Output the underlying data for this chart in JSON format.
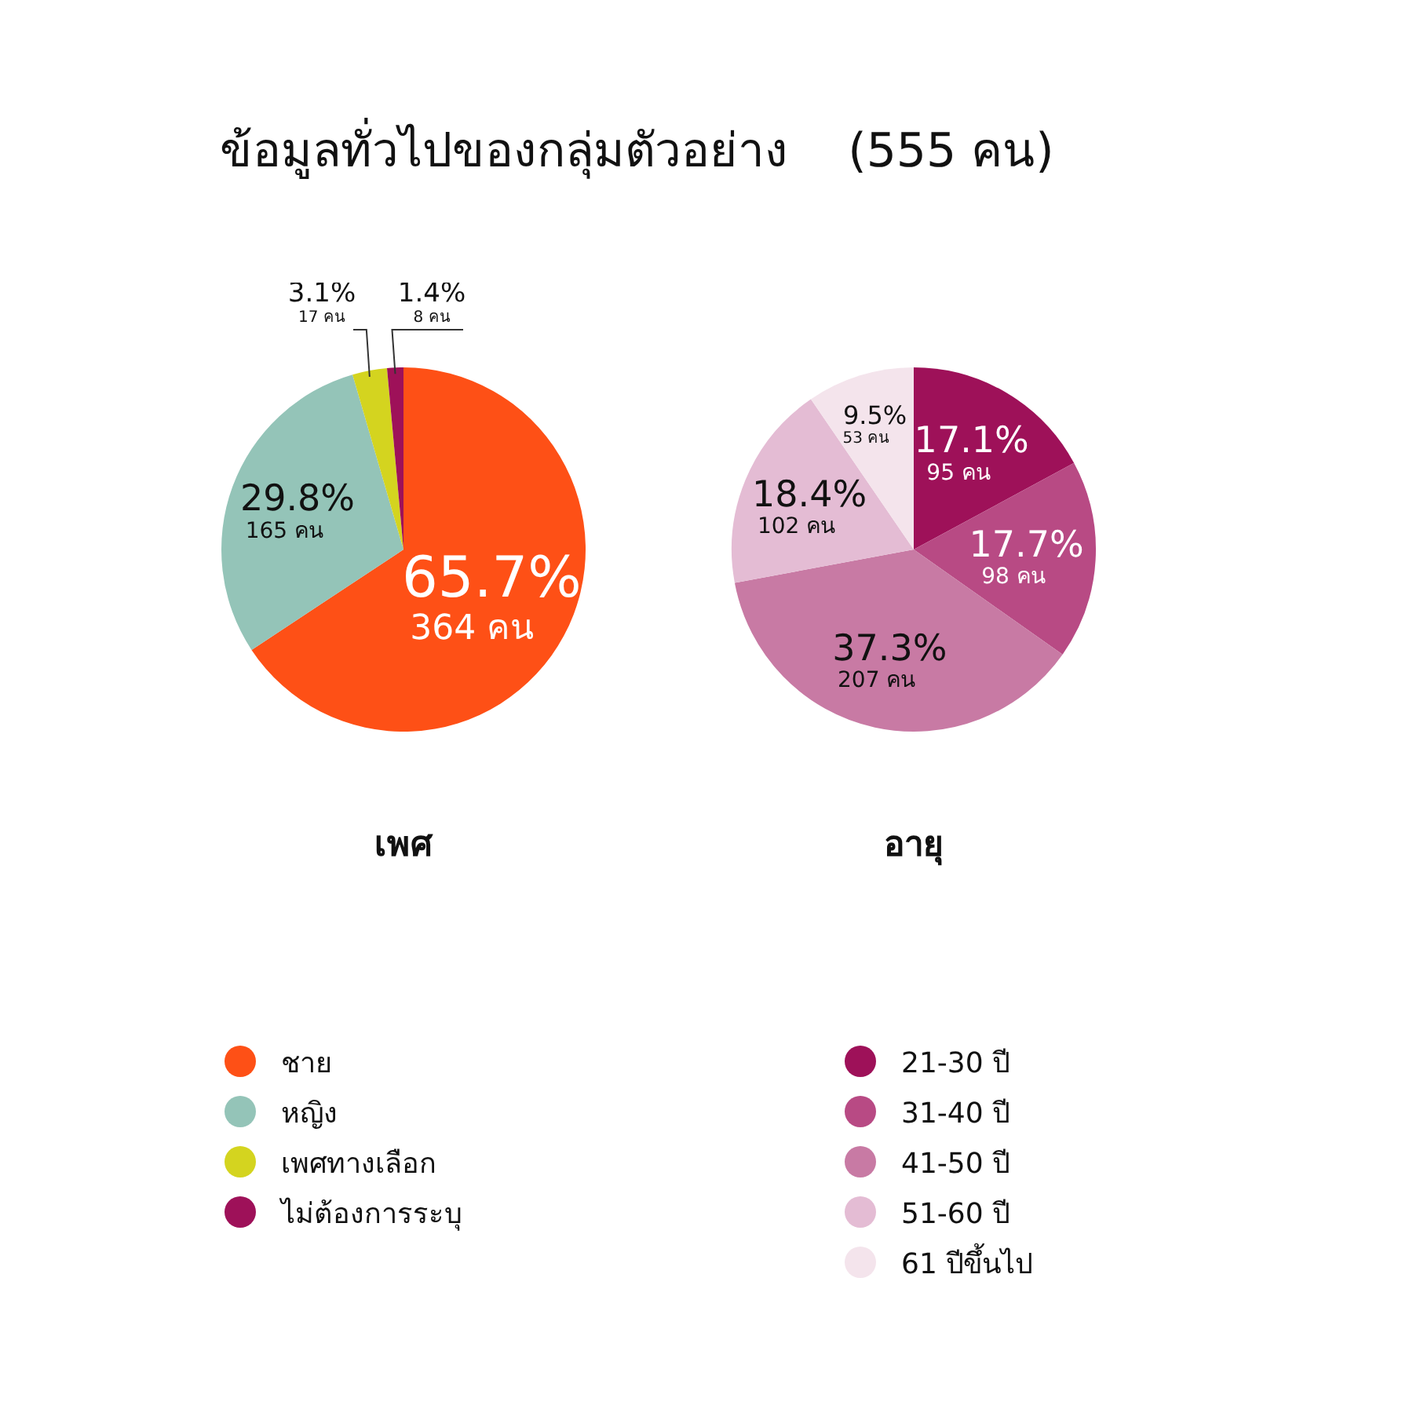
{
  "chart_data": [
    {
      "type": "pie",
      "title": "ข้อมูลทั่วไปของกลุ่มตัวอย่าง    (555 คน)",
      "xlabel": "เพศ",
      "categories": [
        "ชาย",
        "หญิง",
        "เพศทางเลือก",
        "ไม่ต้องการระบุ"
      ],
      "values": [
        364,
        165,
        17,
        8
      ],
      "colors": [
        "#fe5016",
        "#94c4b8",
        "#d4d41f",
        "#9e1159"
      ],
      "value_labels": [
        "65.7%\n364 คน",
        "29.8%\n165 คน",
        "3.1%\n17 คน",
        "1.4%\n8 คน"
      ],
      "legend": "bottom"
    },
    {
      "type": "pie",
      "xlabel": "อายุ",
      "categories": [
        "21-30 ปี",
        "31-40 ปี",
        "41-50 ปี",
        "51-60 ปี",
        "61 ปีขึ้นไป"
      ],
      "values": [
        95,
        98,
        207,
        102,
        53
      ],
      "colors": [
        "#9e1159",
        "#b84a84",
        "#c87aa4",
        "#e4bcd4",
        "#f4e4ec"
      ],
      "value_labels": [
        "17.1%\n95 คน",
        "17.7%\n98 คน",
        "37.3%\n207 คน",
        "18.4%\n102 คน",
        "9.5%\n53 คน"
      ],
      "legend": "bottom"
    }
  ]
}
